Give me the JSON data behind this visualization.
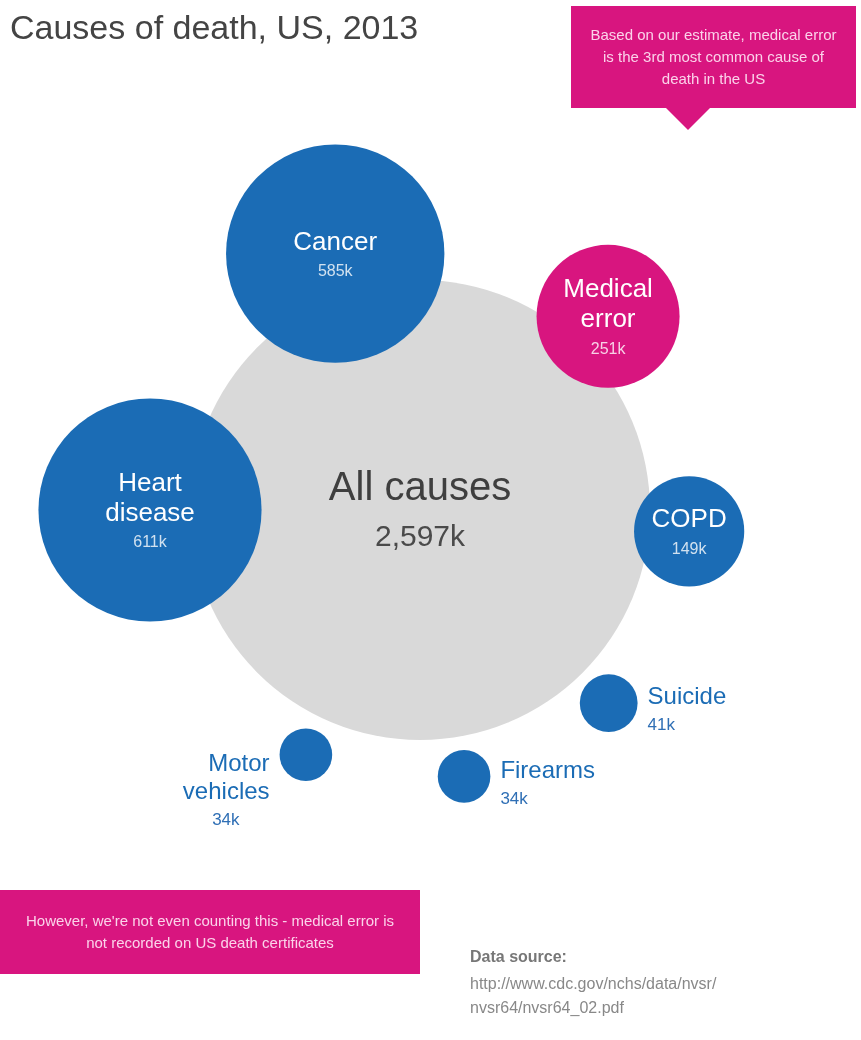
{
  "chart_data": {
    "type": "other",
    "title": "Causes of death, US, 2013",
    "categories": [
      "All causes",
      "Heart disease",
      "Cancer",
      "Medical error",
      "COPD",
      "Suicide",
      "Firearms",
      "Motor vehicles"
    ],
    "values": [
      2597,
      611,
      585,
      251,
      149,
      41,
      34,
      34
    ],
    "colors": [
      "#d9d9d9",
      "#1b6cb5",
      "#1b6cb5",
      "#d8157f",
      "#1b6cb5",
      "#1b6cb5",
      "#1b6cb5",
      "#1b6cb5"
    ],
    "value_labels": [
      "2,597k",
      "611k",
      "585k",
      "251k",
      "149k",
      "41k",
      "34k",
      "34k"
    ],
    "annotations": [
      "Based on our estimate, medical error is the 3rd most common cause of death in the US",
      "However, we're not even counting this - medical error is not recorded on US death certificates",
      "Data source:",
      "http://www.cdc.gov/nchs/data/nvsr/nvsr64/nvsr64_02.pdf"
    ]
  }
}
